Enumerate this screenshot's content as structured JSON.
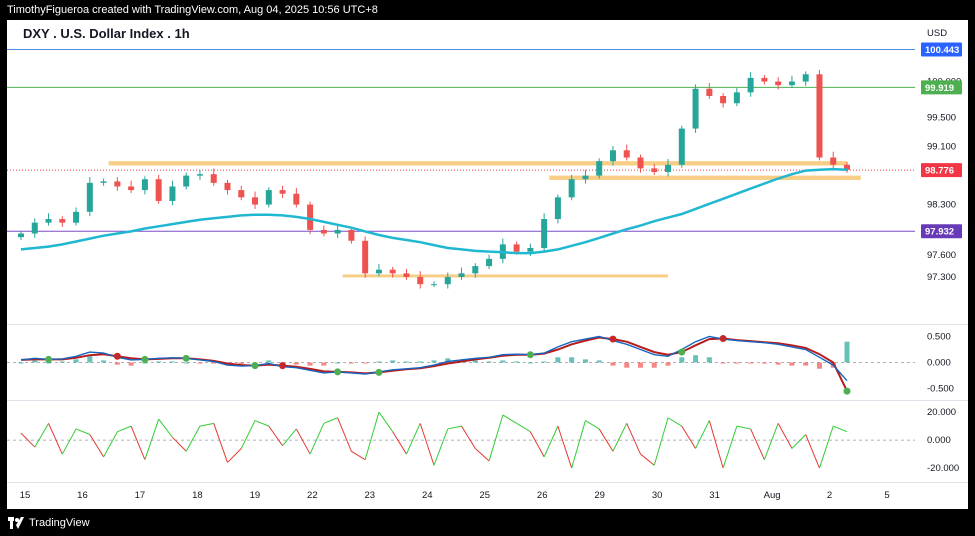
{
  "attribution": "TimothyFigueroa created with TradingView.com, Aug 04, 2025 10:56 UTC+8",
  "footer": {
    "brand": "TradingView"
  },
  "colors": {
    "up": "#26a69a",
    "down": "#ef5350",
    "ma": "#1fb8d0",
    "zone": "#f7c97a",
    "resistance_line": "#4b91e2",
    "green_line": "#4caf50",
    "purple_line": "#7b4fc9",
    "price_tag_red": "#f23645",
    "price_tag_green": "#4caf50",
    "price_tag_blue": "#2962ff",
    "price_tag_purple": "#673ab7",
    "macd_fast": "#1565c0",
    "macd_slow": "#b71c1c",
    "macd_cross_up": "#4caf50",
    "macd_cross_down": "#c62828",
    "osc_up": "#33cc33",
    "osc_down": "#e53935"
  },
  "chart_data": {
    "type": "candlestick",
    "title": "DXY . U.S. Dollar Index . 1h",
    "currency": "USD",
    "x_tick_labels": [
      "15",
      "16",
      "17",
      "18",
      "19",
      "22",
      "23",
      "24",
      "25",
      "26",
      "29",
      "30",
      "31",
      "Aug",
      "2",
      "5"
    ],
    "price_axis": {
      "ticks": [
        100.0,
        99.5,
        99.1,
        98.3,
        97.6,
        97.3
      ],
      "tick_labels": [
        "100.000",
        "99.500",
        "99.100",
        "98.300",
        "97.600",
        "97.300"
      ],
      "range": [
        96.65,
        100.85
      ]
    },
    "price_levels": [
      {
        "label": "100.443",
        "value": 100.443,
        "kind": "horizontal-line"
      },
      {
        "label": "99.919",
        "value": 99.919,
        "kind": "horizontal-line"
      },
      {
        "label": "98.776",
        "value": 98.776,
        "kind": "last-price"
      },
      {
        "label": "97.932",
        "value": 97.932,
        "kind": "horizontal-line"
      }
    ],
    "zones": [
      {
        "from_index": 10,
        "to_index": 60,
        "low": 98.84,
        "high": 98.9,
        "name": ""
      },
      {
        "from_index": 42,
        "to_index": 61,
        "low": 98.64,
        "high": 98.7,
        "name": ""
      },
      {
        "from_index": 27,
        "to_index": 47,
        "low": 97.305,
        "high": 97.335,
        "name": ""
      }
    ],
    "close": [
      97.9,
      98.05,
      98.1,
      98.05,
      98.2,
      98.6,
      98.62,
      98.55,
      98.5,
      98.65,
      98.35,
      98.55,
      98.7,
      98.72,
      98.6,
      98.5,
      98.4,
      98.3,
      98.5,
      98.45,
      98.3,
      97.95,
      97.9,
      97.95,
      97.8,
      97.35,
      97.4,
      97.35,
      97.3,
      97.2,
      97.2,
      97.3,
      97.35,
      97.45,
      97.55,
      97.75,
      97.65,
      97.7,
      98.1,
      98.4,
      98.65,
      98.7,
      98.9,
      99.05,
      98.95,
      98.8,
      98.75,
      98.85,
      99.35,
      99.9,
      99.8,
      99.7,
      99.85,
      100.05,
      100.0,
      99.95,
      100.0,
      100.1,
      98.95,
      98.85,
      98.78
    ],
    "moving_average": [
      97.68,
      97.7,
      97.72,
      97.75,
      97.79,
      97.83,
      97.87,
      97.9,
      97.93,
      97.97,
      98.0,
      98.03,
      98.06,
      98.09,
      98.11,
      98.13,
      98.15,
      98.16,
      98.16,
      98.15,
      98.13,
      98.1,
      98.06,
      98.02,
      97.98,
      97.93,
      97.88,
      97.84,
      97.81,
      97.78,
      97.74,
      97.7,
      97.68,
      97.66,
      97.65,
      97.64,
      97.63,
      97.63,
      97.65,
      97.68,
      97.73,
      97.78,
      97.84,
      97.9,
      97.96,
      98.01,
      98.07,
      98.12,
      98.17,
      98.24,
      98.31,
      98.38,
      98.45,
      98.52,
      98.59,
      98.66,
      98.72,
      98.77,
      98.78,
      98.79,
      98.78
    ],
    "macd_axis": {
      "ticks": [
        0.5,
        0.0,
        -0.5
      ],
      "tick_labels": [
        "0.500",
        "0.000",
        "-0.500"
      ],
      "range": [
        -0.72,
        0.72
      ]
    },
    "macd_fast": [
      0.05,
      0.08,
      0.06,
      0.07,
      0.12,
      0.2,
      0.18,
      0.1,
      0.05,
      0.06,
      0.08,
      0.09,
      0.08,
      0.05,
      0.02,
      -0.05,
      -0.07,
      -0.06,
      -0.02,
      -0.08,
      -0.1,
      -0.15,
      -0.2,
      -0.18,
      -0.2,
      -0.22,
      -0.18,
      -0.14,
      -0.12,
      -0.1,
      -0.05,
      0.02,
      0.05,
      0.08,
      0.1,
      0.15,
      0.16,
      0.15,
      0.18,
      0.3,
      0.4,
      0.45,
      0.5,
      0.42,
      0.35,
      0.25,
      0.15,
      0.12,
      0.25,
      0.4,
      0.5,
      0.45,
      0.42,
      0.4,
      0.38,
      0.35,
      0.3,
      0.25,
      0.1,
      -0.05,
      -0.35
    ],
    "macd_slow": [
      0.05,
      0.06,
      0.06,
      0.06,
      0.09,
      0.14,
      0.16,
      0.12,
      0.08,
      0.06,
      0.07,
      0.08,
      0.08,
      0.06,
      0.03,
      -0.02,
      -0.05,
      -0.06,
      -0.04,
      -0.06,
      -0.08,
      -0.12,
      -0.17,
      -0.18,
      -0.19,
      -0.21,
      -0.19,
      -0.16,
      -0.13,
      -0.11,
      -0.07,
      -0.02,
      0.02,
      0.06,
      0.09,
      0.13,
      0.15,
      0.15,
      0.17,
      0.25,
      0.35,
      0.42,
      0.48,
      0.45,
      0.4,
      0.3,
      0.2,
      0.15,
      0.2,
      0.33,
      0.45,
      0.46,
      0.43,
      0.41,
      0.39,
      0.37,
      0.33,
      0.28,
      0.16,
      0.0,
      -0.55
    ],
    "oscillator_axis": {
      "ticks": [
        20.0,
        0.0,
        -20.0
      ],
      "tick_labels": [
        "20.000",
        "0.000",
        "-20.000"
      ],
      "range": [
        -30,
        28
      ]
    },
    "oscillator": [
      5,
      -5,
      12,
      -10,
      8,
      4,
      -12,
      6,
      10,
      -14,
      15,
      2,
      -8,
      10,
      12,
      -16,
      -6,
      14,
      10,
      -4,
      8,
      -10,
      12,
      16,
      -8,
      -14,
      20,
      6,
      -10,
      12,
      -18,
      8,
      10,
      -6,
      -15,
      18,
      12,
      6,
      -12,
      10,
      -20,
      14,
      8,
      -8,
      12,
      -10,
      -18,
      16,
      10,
      -6,
      14,
      -20,
      10,
      8,
      -14,
      12,
      -6,
      4,
      -20,
      10,
      6
    ]
  }
}
